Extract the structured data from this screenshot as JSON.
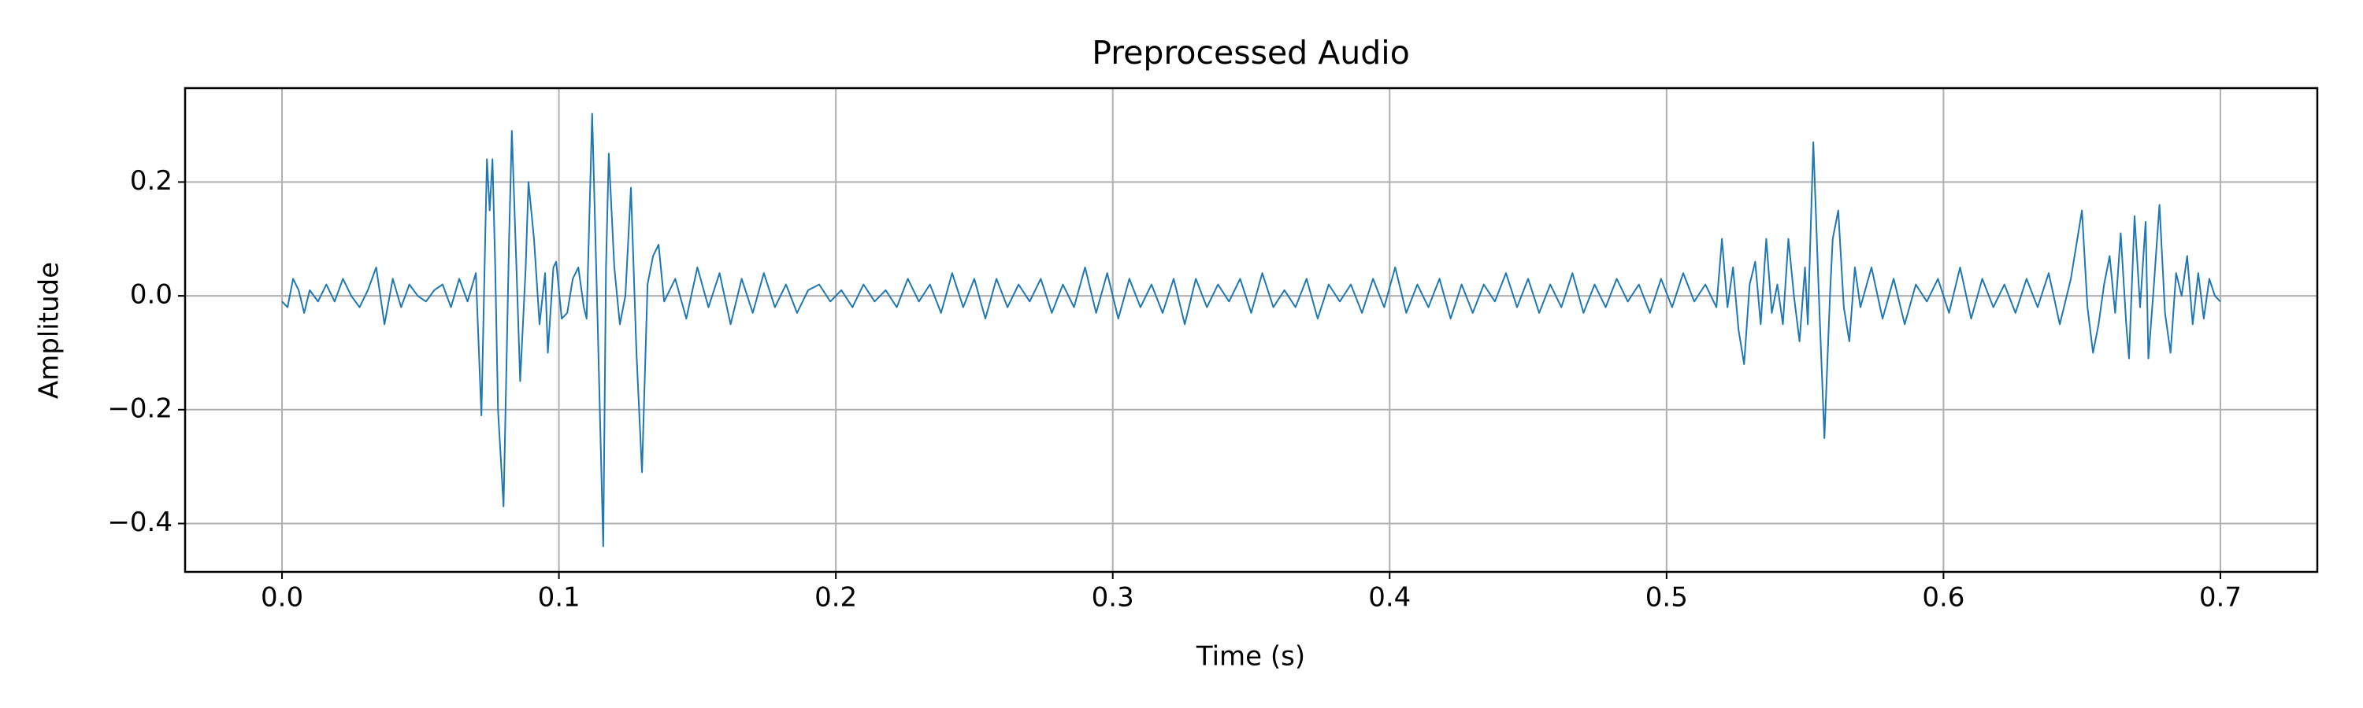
{
  "chart_data": {
    "type": "line",
    "title": "Preprocessed Audio",
    "xlabel": "Time (s)",
    "ylabel": "Amplitude",
    "color": "#1f77b4",
    "grid": true,
    "xlim": [
      -0.035,
      0.735
    ],
    "ylim": [
      -0.485,
      0.365
    ],
    "xticks": [
      {
        "value": 0,
        "label": "0.0"
      },
      0.1,
      0.2,
      0.3,
      0.4,
      0.5,
      0.6,
      0.7
    ],
    "yticks": [
      {
        "value": -0.4,
        "label": "−0.4"
      },
      {
        "value": -0.2,
        "label": "−0.2"
      },
      {
        "value": 0,
        "label": "0.0"
      },
      0.2
    ],
    "x": [
      0.0,
      0.002,
      0.004,
      0.006,
      0.008,
      0.01,
      0.013,
      0.016,
      0.019,
      0.022,
      0.025,
      0.028,
      0.031,
      0.034,
      0.037,
      0.04,
      0.043,
      0.046,
      0.049,
      0.052,
      0.055,
      0.058,
      0.061,
      0.064,
      0.067,
      0.07,
      0.072,
      0.074,
      0.075,
      0.076,
      0.077,
      0.078,
      0.08,
      0.082,
      0.083,
      0.085,
      0.086,
      0.088,
      0.089,
      0.091,
      0.093,
      0.095,
      0.096,
      0.098,
      0.099,
      0.101,
      0.103,
      0.105,
      0.107,
      0.109,
      0.11,
      0.112,
      0.114,
      0.116,
      0.117,
      0.118,
      0.12,
      0.122,
      0.124,
      0.126,
      0.128,
      0.13,
      0.132,
      0.134,
      0.136,
      0.138,
      0.142,
      0.146,
      0.15,
      0.154,
      0.158,
      0.162,
      0.166,
      0.17,
      0.174,
      0.178,
      0.182,
      0.186,
      0.19,
      0.194,
      0.198,
      0.202,
      0.206,
      0.21,
      0.214,
      0.218,
      0.222,
      0.226,
      0.23,
      0.234,
      0.238,
      0.242,
      0.246,
      0.25,
      0.254,
      0.258,
      0.262,
      0.266,
      0.27,
      0.274,
      0.278,
      0.282,
      0.286,
      0.29,
      0.294,
      0.298,
      0.302,
      0.306,
      0.31,
      0.314,
      0.318,
      0.322,
      0.326,
      0.33,
      0.334,
      0.338,
      0.342,
      0.346,
      0.35,
      0.354,
      0.358,
      0.362,
      0.366,
      0.37,
      0.374,
      0.378,
      0.382,
      0.386,
      0.39,
      0.394,
      0.398,
      0.402,
      0.406,
      0.41,
      0.414,
      0.418,
      0.422,
      0.426,
      0.43,
      0.434,
      0.438,
      0.442,
      0.446,
      0.45,
      0.454,
      0.458,
      0.462,
      0.466,
      0.47,
      0.474,
      0.478,
      0.482,
      0.486,
      0.49,
      0.494,
      0.498,
      0.502,
      0.506,
      0.51,
      0.514,
      0.518,
      0.52,
      0.522,
      0.524,
      0.526,
      0.528,
      0.53,
      0.532,
      0.534,
      0.536,
      0.538,
      0.54,
      0.542,
      0.544,
      0.546,
      0.548,
      0.55,
      0.551,
      0.553,
      0.555,
      0.557,
      0.559,
      0.56,
      0.562,
      0.564,
      0.566,
      0.568,
      0.57,
      0.574,
      0.578,
      0.582,
      0.586,
      0.59,
      0.594,
      0.598,
      0.602,
      0.606,
      0.61,
      0.614,
      0.618,
      0.622,
      0.626,
      0.63,
      0.634,
      0.638,
      0.642,
      0.646,
      0.65,
      0.652,
      0.654,
      0.656,
      0.658,
      0.66,
      0.662,
      0.664,
      0.666,
      0.667,
      0.669,
      0.671,
      0.673,
      0.674,
      0.676,
      0.678,
      0.68,
      0.682,
      0.684,
      0.686,
      0.688,
      0.69,
      0.692,
      0.694,
      0.696,
      0.698,
      0.7
    ],
    "values": [
      -0.01,
      -0.02,
      0.03,
      0.01,
      -0.03,
      0.01,
      -0.01,
      0.02,
      -0.01,
      0.03,
      0.0,
      -0.02,
      0.01,
      0.05,
      -0.05,
      0.03,
      -0.02,
      0.02,
      0.0,
      -0.01,
      0.01,
      0.02,
      -0.02,
      0.03,
      -0.01,
      0.04,
      -0.21,
      0.24,
      0.15,
      0.24,
      0.05,
      -0.2,
      -0.37,
      0.1,
      0.29,
      0.0,
      -0.15,
      0.05,
      0.2,
      0.1,
      -0.05,
      0.04,
      -0.1,
      0.05,
      0.06,
      -0.04,
      -0.03,
      0.03,
      0.05,
      -0.02,
      -0.04,
      0.32,
      -0.05,
      -0.44,
      0.05,
      0.25,
      0.05,
      -0.05,
      0.0,
      0.19,
      -0.1,
      -0.31,
      0.02,
      0.07,
      0.09,
      -0.01,
      0.03,
      -0.04,
      0.05,
      -0.02,
      0.04,
      -0.05,
      0.03,
      -0.03,
      0.04,
      -0.02,
      0.02,
      -0.03,
      0.01,
      0.02,
      -0.01,
      0.01,
      -0.02,
      0.02,
      -0.01,
      0.01,
      -0.02,
      0.03,
      -0.01,
      0.02,
      -0.03,
      0.04,
      -0.02,
      0.03,
      -0.04,
      0.03,
      -0.02,
      0.02,
      -0.01,
      0.03,
      -0.03,
      0.02,
      -0.02,
      0.05,
      -0.03,
      0.04,
      -0.04,
      0.03,
      -0.02,
      0.02,
      -0.03,
      0.03,
      -0.05,
      0.03,
      -0.02,
      0.02,
      -0.01,
      0.03,
      -0.03,
      0.04,
      -0.02,
      0.01,
      -0.02,
      0.03,
      -0.04,
      0.02,
      -0.01,
      0.02,
      -0.03,
      0.03,
      -0.02,
      0.05,
      -0.03,
      0.02,
      -0.02,
      0.03,
      -0.04,
      0.02,
      -0.03,
      0.02,
      -0.01,
      0.04,
      -0.02,
      0.03,
      -0.03,
      0.02,
      -0.02,
      0.04,
      -0.03,
      0.02,
      -0.02,
      0.03,
      -0.01,
      0.02,
      -0.03,
      0.03,
      -0.02,
      0.04,
      -0.01,
      0.02,
      -0.02,
      0.1,
      -0.02,
      0.05,
      -0.06,
      -0.12,
      0.02,
      0.06,
      -0.05,
      0.1,
      -0.03,
      0.02,
      -0.05,
      0.1,
      0.0,
      -0.08,
      0.05,
      -0.05,
      0.27,
      0.0,
      -0.25,
      0.0,
      0.1,
      0.15,
      -0.02,
      -0.08,
      0.05,
      -0.02,
      0.05,
      -0.04,
      0.03,
      -0.05,
      0.02,
      -0.01,
      0.03,
      -0.03,
      0.05,
      -0.04,
      0.03,
      -0.02,
      0.02,
      -0.03,
      0.03,
      -0.02,
      0.04,
      -0.05,
      0.03,
      0.15,
      -0.02,
      -0.1,
      -0.05,
      0.02,
      0.07,
      -0.03,
      0.11,
      -0.05,
      -0.11,
      0.14,
      -0.02,
      0.13,
      -0.11,
      0.02,
      0.16,
      -0.03,
      -0.1,
      0.04,
      0.0,
      0.07,
      -0.05,
      0.04,
      -0.04,
      0.03,
      0.0,
      -0.01
    ]
  }
}
